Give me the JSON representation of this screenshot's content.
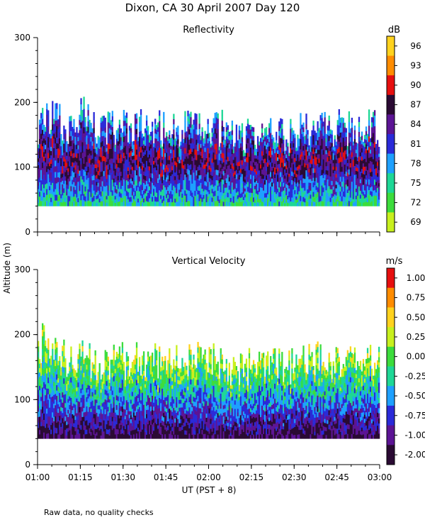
{
  "figure": {
    "title": "Dixon, CA 30 April 2007  Day 120",
    "ylabel": "Altitude (m)",
    "xlabel": "UT  (PST + 8)",
    "footnote": "Raw data, no quality checks"
  },
  "chart_data": [
    {
      "type": "heatmap",
      "title": "Reflectivity",
      "ylim": [
        0,
        300
      ],
      "yticks": [
        0,
        100,
        200,
        300
      ],
      "ytick_labels": [
        "0",
        "100",
        "200",
        "300"
      ],
      "xlim_labels": [
        "01:00",
        "03:00"
      ],
      "xticks": [
        "01:00",
        "01:15",
        "01:30",
        "01:45",
        "02:00",
        "02:15",
        "02:30",
        "02:45",
        "03:00"
      ],
      "colorbar": {
        "unit": "dB",
        "labels": [
          "96",
          "93",
          "90",
          "87",
          "84",
          "81",
          "78",
          "75",
          "72",
          "69"
        ],
        "colors": [
          "#ffd21e",
          "#ff8c00",
          "#e60f0f",
          "#2a0a33",
          "#5c1494",
          "#2a2ad8",
          "#1ea0ff",
          "#1ed796",
          "#3cdc3c",
          "#c8f01e"
        ]
      },
      "data_summary": {
        "echo_base_altitude_m": 40,
        "typical_echo_top_m": [
          140,
          200
        ],
        "max_echo_top_m": 220,
        "note": "Strongest returns (84-90 dB) mostly between 90 and 150 m; weaker (72-81 dB) near the base."
      }
    },
    {
      "type": "heatmap",
      "title": "Vertical Velocity",
      "ylim": [
        0,
        300
      ],
      "yticks": [
        0,
        100,
        200,
        300
      ],
      "ytick_labels": [
        "0",
        "100",
        "200",
        "300"
      ],
      "xlim_labels": [
        "01:00",
        "03:00"
      ],
      "xticks": [
        "01:00",
        "01:15",
        "01:30",
        "01:45",
        "02:00",
        "02:15",
        "02:30",
        "02:45",
        "03:00"
      ],
      "colorbar": {
        "unit": "m/s",
        "labels": [
          "1.00",
          "0.75",
          "0.50",
          "0.25",
          "0.00",
          "-0.25",
          "-0.50",
          "-0.75",
          "-1.00",
          "-2.00"
        ],
        "colors": [
          "#e60f0f",
          "#ff8c00",
          "#ffd21e",
          "#c8f01e",
          "#3cdc3c",
          "#1ed796",
          "#1ea0ff",
          "#2a2ad8",
          "#5c1494",
          "#2a0a33"
        ]
      },
      "data_summary": {
        "echo_base_altitude_m": 40,
        "typical_echo_top_m": [
          140,
          200
        ],
        "max_echo_top_m": 220,
        "note": "Downward motion (-0.75 to -2.00 m/s) near 40-80 m; near zero to positive (0.00 to 0.75 m/s) aloft."
      }
    }
  ]
}
